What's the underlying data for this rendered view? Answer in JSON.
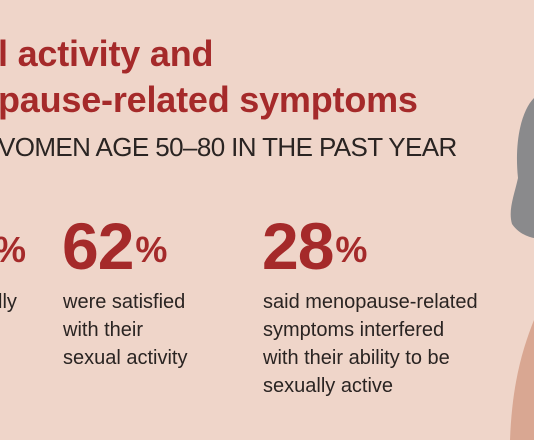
{
  "header": {
    "title_line1": "l activity and",
    "title_line2": "pause-related symptoms",
    "subtitle": "VOMEN AGE 50–80 IN THE PAST YEAR"
  },
  "stats": [
    {
      "value": "",
      "percent_sign": "%",
      "description_lines": [
        "lly",
        "",
        ""
      ]
    },
    {
      "value": "62",
      "percent_sign": "%",
      "description_lines": [
        "were satisfied",
        "with their",
        "sexual activity"
      ]
    },
    {
      "value": "28",
      "percent_sign": "%",
      "description_lines": [
        "said menopause-related",
        "symptoms interfered",
        "with their ability to be",
        "sexually active"
      ]
    }
  ],
  "colors": {
    "background": "#efd5c9",
    "accent": "#a52a2a",
    "text": "#2a2422",
    "hair": "#8a8a8c",
    "skin": "#d9a792"
  },
  "illustration": {
    "name": "woman-silhouette-illustration"
  }
}
